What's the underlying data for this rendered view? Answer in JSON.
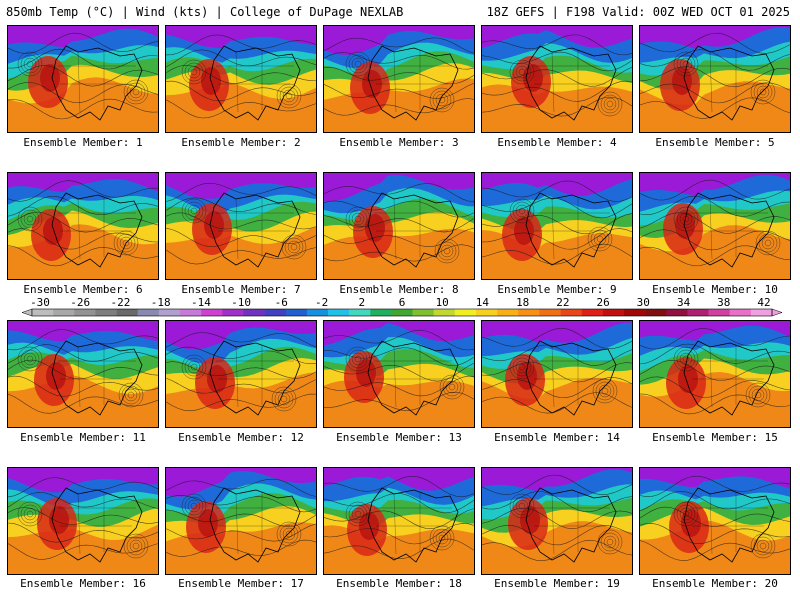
{
  "header": {
    "left": "850mb Temp (°C) | Wind (kts) | College of DuPage NEXLAB",
    "right": "18Z GEFS | F198 Valid: 00Z WED OCT 01 2025"
  },
  "members": [
    {
      "label": "Ensemble Member: 1"
    },
    {
      "label": "Ensemble Member: 2"
    },
    {
      "label": "Ensemble Member: 3"
    },
    {
      "label": "Ensemble Member: 4"
    },
    {
      "label": "Ensemble Member: 5"
    },
    {
      "label": "Ensemble Member: 6"
    },
    {
      "label": "Ensemble Member: 7"
    },
    {
      "label": "Ensemble Member: 8"
    },
    {
      "label": "Ensemble Member: 9"
    },
    {
      "label": "Ensemble Member: 10"
    },
    {
      "label": "Ensemble Member: 11"
    },
    {
      "label": "Ensemble Member: 12"
    },
    {
      "label": "Ensemble Member: 13"
    },
    {
      "label": "Ensemble Member: 14"
    },
    {
      "label": "Ensemble Member: 15"
    },
    {
      "label": "Ensemble Member: 16"
    },
    {
      "label": "Ensemble Member: 17"
    },
    {
      "label": "Ensemble Member: 18"
    },
    {
      "label": "Ensemble Member: 19"
    },
    {
      "label": "Ensemble Member: 20"
    }
  ],
  "colorbar": {
    "labels": [
      "-30",
      "-26",
      "-22",
      "-18",
      "-14",
      "-10",
      "-6",
      "-2",
      "2",
      "6",
      "10",
      "14",
      "18",
      "22",
      "26",
      "30",
      "34",
      "38",
      "42"
    ],
    "colors": [
      "#bdbdbd",
      "#a8a8a8",
      "#939393",
      "#7e7e7e",
      "#6a6a6a",
      "#8a8ab0",
      "#b0a0d0",
      "#c87ad8",
      "#d040d0",
      "#a030c8",
      "#7030c0",
      "#4040c0",
      "#2060d0",
      "#1890e0",
      "#20c0e8",
      "#40d8c0",
      "#20b060",
      "#40a830",
      "#80c030",
      "#c0d830",
      "#f0f020",
      "#f8d020",
      "#f8b018",
      "#f89018",
      "#f07018",
      "#e84818",
      "#e02018",
      "#c01010",
      "#a00808",
      "#801010",
      "#901040",
      "#b02070",
      "#d040a0",
      "#e870c8",
      "#f0a0e0"
    ]
  },
  "palette": {
    "cold": "#9a1ad8",
    "cool": "#1e6ad8",
    "mild": "#20c8c8",
    "green": "#40b040",
    "warm": "#f8d020",
    "hot": "#f08818",
    "heat": "#d82818"
  }
}
